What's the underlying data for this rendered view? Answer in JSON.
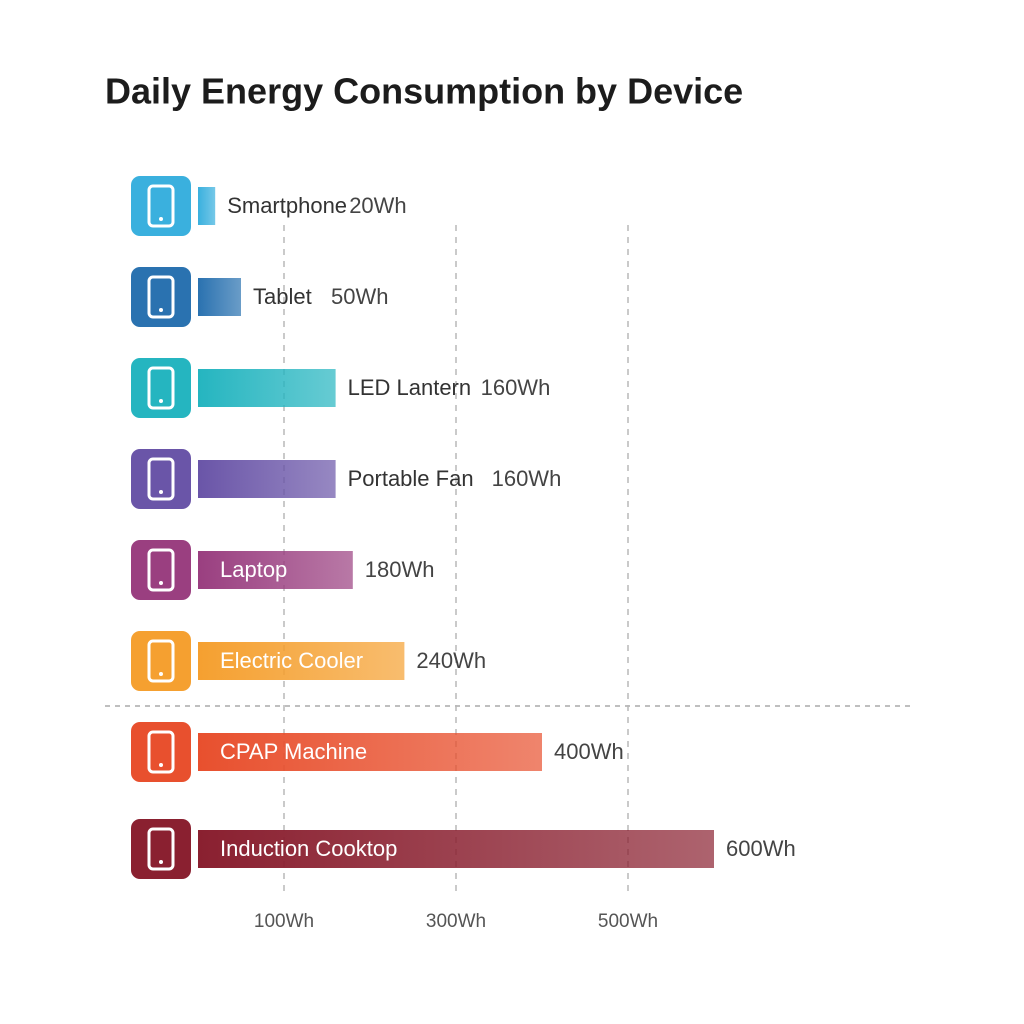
{
  "chart_data": {
    "type": "hbar",
    "title": "Daily Energy Consumption by Device",
    "categories": [
      "Smartphone",
      "Tablet",
      "LED Lantern",
      "Portable Fan",
      "Laptop",
      "Electric Cooler",
      "CPAP Machine",
      "Induction Cooktop"
    ],
    "values": [
      20,
      50,
      160,
      160,
      180,
      240,
      400,
      600
    ],
    "value_labels": [
      "20Wh",
      "50Wh",
      "160Wh",
      "160Wh",
      "180Wh",
      "240Wh",
      "400Wh",
      "600Wh"
    ],
    "colors": [
      "#3ab0de",
      "#2a72b0",
      "#25b5c0",
      "#6a55a8",
      "#9a3f80",
      "#f5a030",
      "#e8502e",
      "#8a2030"
    ],
    "xlim": [
      0,
      700
    ],
    "xticks": [
      {
        "value": 100,
        "label": "100Wh"
      },
      {
        "value": 300,
        "label": "300Wh"
      },
      {
        "value": 500,
        "label": "500Wh"
      }
    ],
    "grid": true
  }
}
